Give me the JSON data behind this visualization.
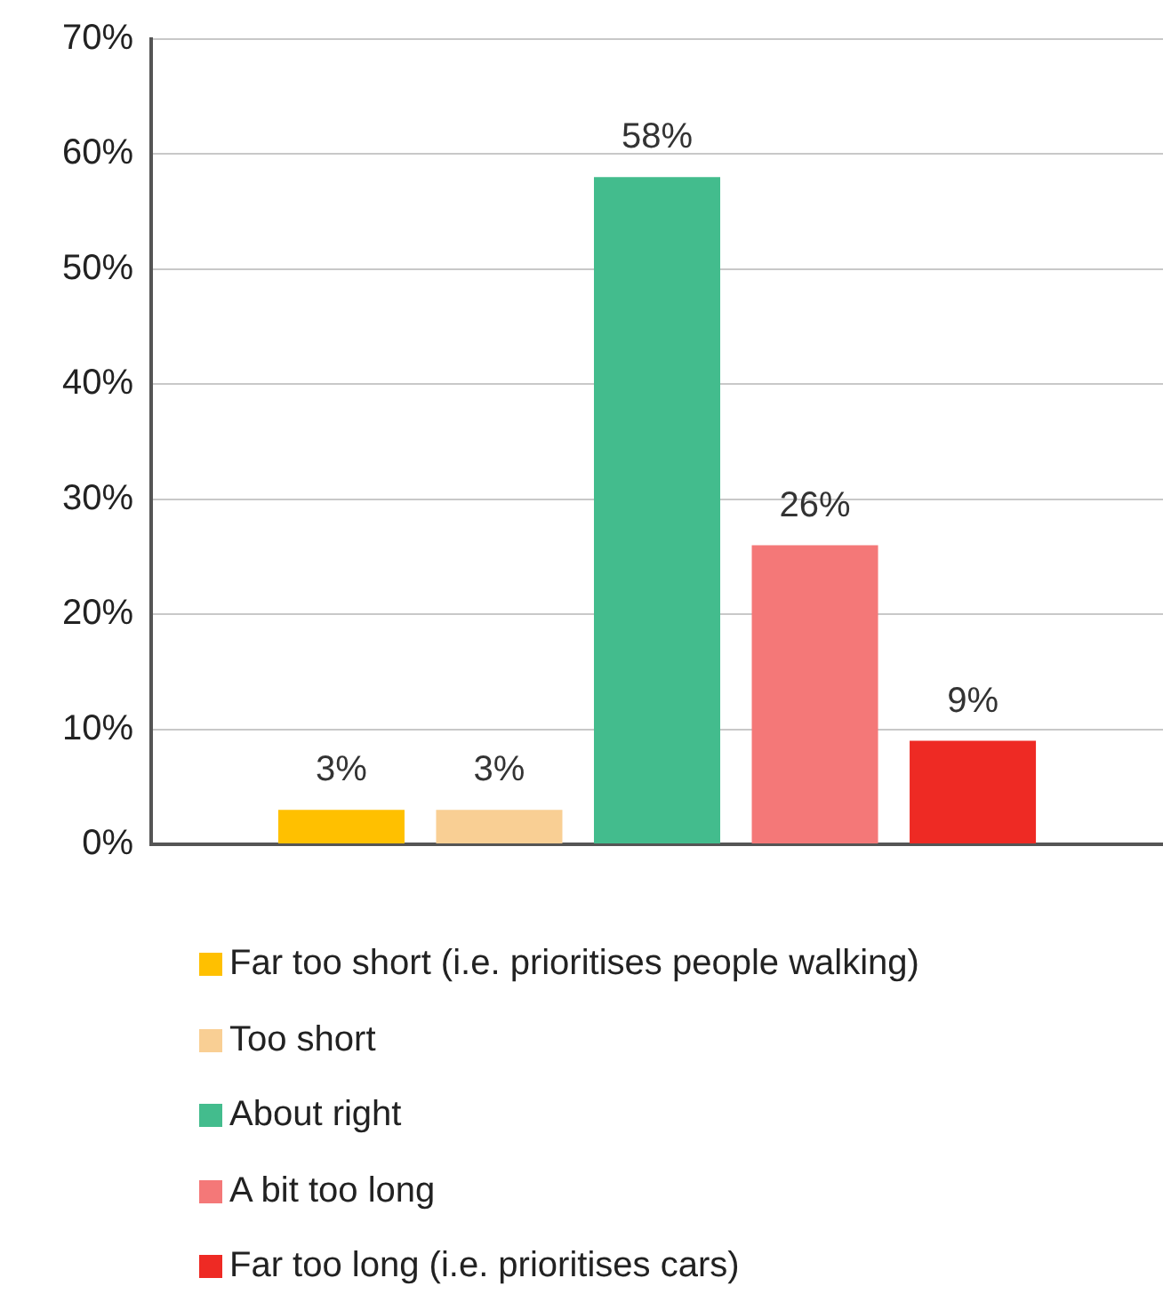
{
  "chart_data": {
    "type": "bar",
    "categories": [
      null
    ],
    "series": [
      {
        "name": "Far too short (i.e. prioritises people walking)",
        "color": "#ffc000",
        "values": [
          3
        ],
        "value_labels": [
          "3%"
        ]
      },
      {
        "name": "Too short",
        "color": "#f9cf94",
        "values": [
          3
        ],
        "value_labels": [
          "3%"
        ]
      },
      {
        "name": "About right",
        "color": "#43bc8d",
        "values": [
          58
        ],
        "value_labels": [
          "58%"
        ]
      },
      {
        "name": "A bit too long",
        "color": "#f47878",
        "values": [
          26
        ],
        "value_labels": [
          "26%"
        ]
      },
      {
        "name": "Far too long (i.e. prioritises cars)",
        "color": "#ee2a24",
        "values": [
          9
        ],
        "value_labels": [
          "9%"
        ]
      }
    ],
    "ylim": [
      0,
      70
    ],
    "yticks": [
      {
        "value": 0,
        "label": "0%"
      },
      {
        "value": 10,
        "label": "10%"
      },
      {
        "value": 20,
        "label": "20%"
      },
      {
        "value": 30,
        "label": "30%"
      },
      {
        "value": 40,
        "label": "40%"
      },
      {
        "value": 50,
        "label": "50%"
      },
      {
        "value": 60,
        "label": "60%"
      },
      {
        "value": 70,
        "label": "70%"
      }
    ],
    "grid": "y",
    "legend": "bottom"
  }
}
